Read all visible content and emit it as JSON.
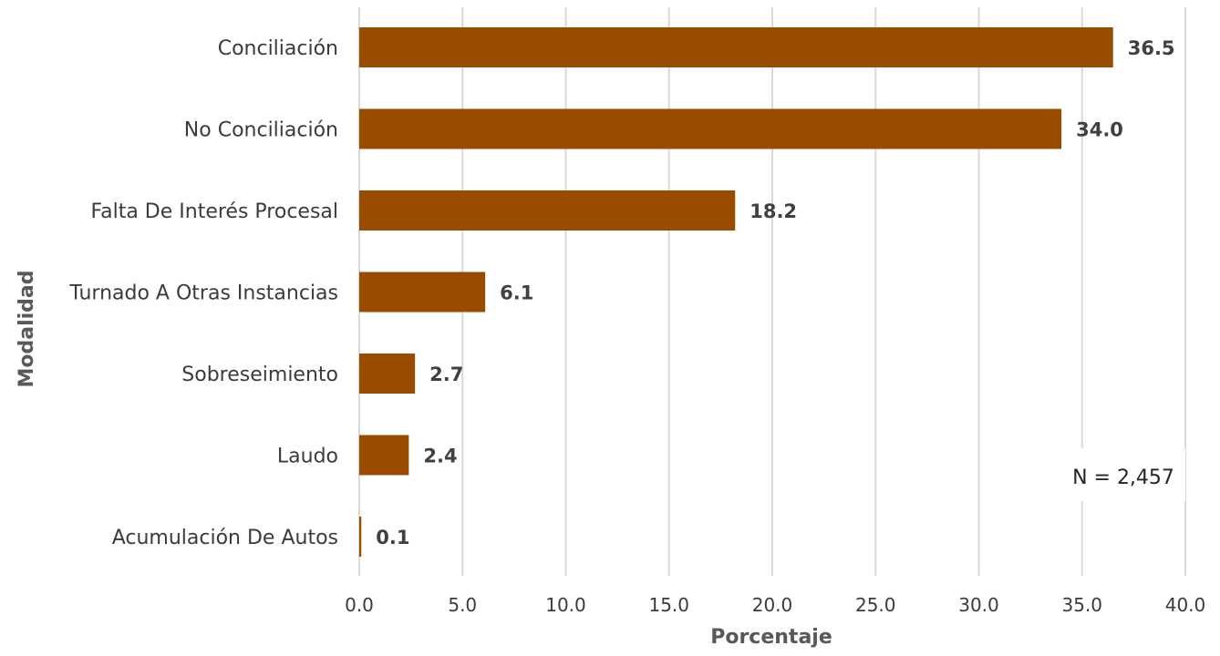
{
  "chart_data": {
    "type": "bar",
    "orientation": "horizontal",
    "categories": [
      "Conciliación",
      "No Conciliación",
      "Falta De Interés Procesal",
      "Turnado A Otras Instancias",
      "Sobreseimiento",
      "Laudo",
      "Acumulación De Autos"
    ],
    "values": [
      36.5,
      34.0,
      18.2,
      6.1,
      2.7,
      2.4,
      0.1
    ],
    "value_labels": [
      "36.5",
      "34.0",
      "18.2",
      "6.1",
      "2.7",
      "2.4",
      "0.1"
    ],
    "xlabel": "Porcentaje",
    "ylabel": "Modalidad",
    "xlim": [
      0,
      40
    ],
    "x_ticks": [
      "0.0",
      "5.0",
      "10.0",
      "15.0",
      "20.0",
      "25.0",
      "30.0",
      "35.0",
      "40.0"
    ],
    "grid": "vertical",
    "annotation": "N = 2,457",
    "bar_color": "#994c00"
  }
}
